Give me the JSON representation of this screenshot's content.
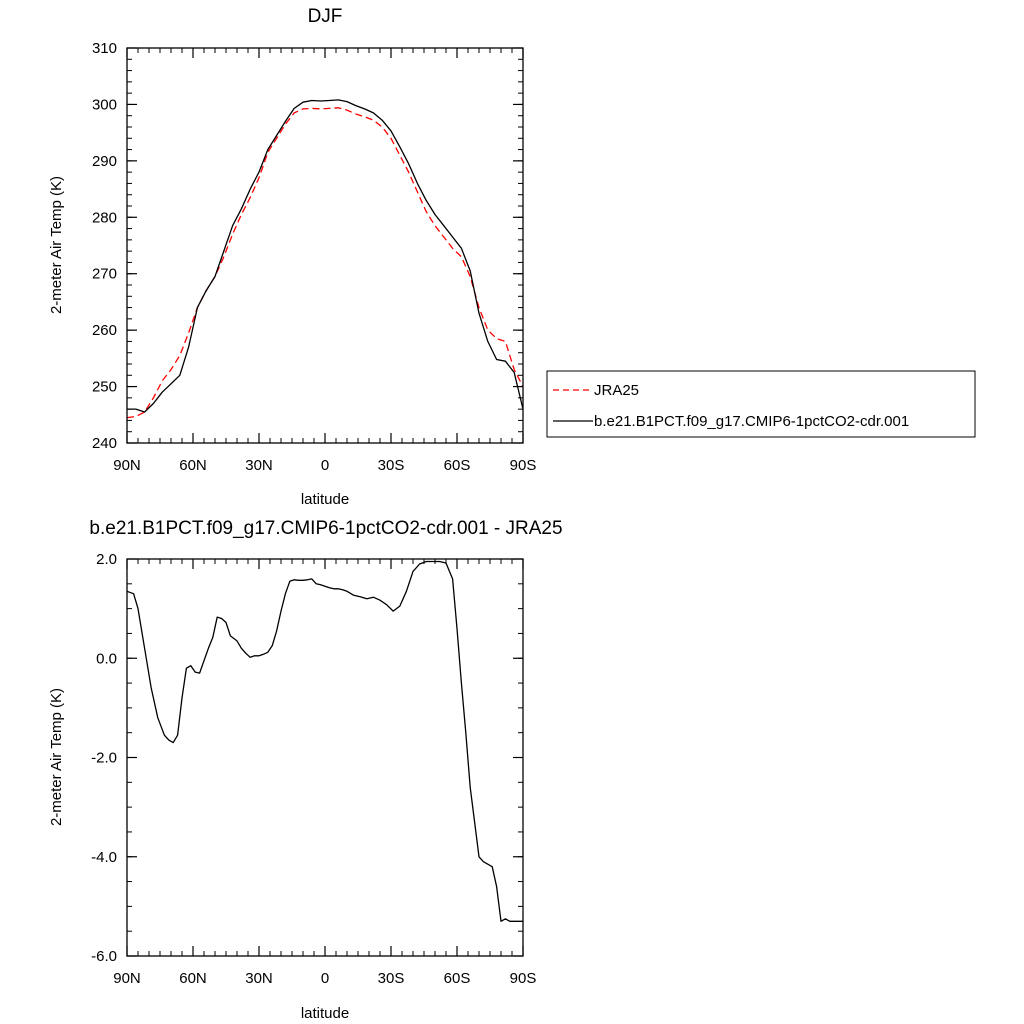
{
  "chart_data": [
    {
      "type": "line",
      "title": "DJF",
      "xlabel": "latitude",
      "ylabel": "2-meter Air Temp (K)",
      "xlim": [
        90,
        -90
      ],
      "ylim": [
        240,
        310
      ],
      "x_ticks": [
        {
          "value": 90,
          "label": "90N"
        },
        {
          "value": 60,
          "label": "60N"
        },
        {
          "value": 30,
          "label": "30N"
        },
        {
          "value": 0,
          "label": "0"
        },
        {
          "value": -30,
          "label": "30S"
        },
        {
          "value": -60,
          "label": "60S"
        },
        {
          "value": -90,
          "label": "90S"
        }
      ],
      "y_ticks": [
        {
          "value": 240,
          "label": "240"
        },
        {
          "value": 250,
          "label": "250"
        },
        {
          "value": 260,
          "label": "260"
        },
        {
          "value": 270,
          "label": "270"
        },
        {
          "value": 280,
          "label": "280"
        },
        {
          "value": 290,
          "label": "290"
        },
        {
          "value": 300,
          "label": "300"
        },
        {
          "value": 310,
          "label": "310"
        }
      ],
      "legend": "right",
      "series": [
        {
          "name": "JRA25",
          "color": "#ff0000",
          "dash": "dashed",
          "x": [
            90,
            86,
            82,
            78,
            74,
            70,
            66,
            62,
            58,
            54,
            50,
            46,
            42,
            38,
            34,
            30,
            26,
            22,
            18,
            14,
            10,
            6,
            2,
            -2,
            -6,
            -10,
            -14,
            -18,
            -22,
            -26,
            -30,
            -34,
            -38,
            -42,
            -46,
            -50,
            -54,
            -58,
            -62,
            -66,
            -70,
            -74,
            -78,
            -82,
            -86,
            -90
          ],
          "y": [
            244.5,
            244.7,
            245.5,
            248.0,
            251.0,
            253.0,
            255.5,
            259.5,
            264.0,
            267.0,
            269.5,
            273.0,
            277.0,
            280.5,
            283.5,
            287.0,
            291.5,
            294.0,
            296.5,
            298.5,
            299.2,
            299.3,
            299.2,
            299.3,
            299.4,
            299.0,
            298.3,
            297.8,
            297.2,
            296.0,
            294.0,
            291.0,
            288.0,
            284.5,
            281.0,
            278.5,
            276.5,
            274.5,
            273.0,
            269.5,
            264.0,
            260.0,
            258.5,
            258.0,
            253.0,
            250.0
          ]
        },
        {
          "name": "b.e21.B1PCT.f09_g17.CMIP6-1pctCO2-cdr.001",
          "color": "#000000",
          "dash": "solid",
          "x": [
            90,
            86,
            82,
            78,
            74,
            70,
            66,
            62,
            58,
            54,
            50,
            46,
            42,
            38,
            34,
            30,
            26,
            22,
            18,
            14,
            10,
            6,
            2,
            -2,
            -6,
            -10,
            -14,
            -18,
            -22,
            -26,
            -30,
            -34,
            -38,
            -42,
            -46,
            -50,
            -54,
            -58,
            -62,
            -66,
            -70,
            -74,
            -78,
            -82,
            -86,
            -90
          ],
          "y": [
            246.0,
            246.0,
            245.5,
            247.0,
            249.0,
            250.5,
            252.0,
            257.0,
            264.0,
            267.0,
            269.5,
            274.0,
            278.5,
            281.5,
            285.0,
            288.0,
            292.0,
            294.5,
            297.0,
            299.3,
            300.4,
            300.7,
            300.6,
            300.7,
            300.8,
            300.5,
            299.8,
            299.2,
            298.5,
            297.2,
            295.3,
            292.5,
            289.5,
            286.0,
            283.0,
            280.5,
            278.5,
            276.5,
            274.5,
            270.5,
            263.0,
            258.0,
            254.8,
            254.5,
            252.5,
            246.0
          ]
        }
      ]
    },
    {
      "type": "line",
      "title": "b.e21.B1PCT.f09_g17.CMIP6-1pctCO2-cdr.001 - JRA25",
      "xlabel": "latitude",
      "ylabel": "2-meter Air Temp (K)",
      "xlim": [
        90,
        -90
      ],
      "ylim": [
        -6,
        2
      ],
      "x_ticks": [
        {
          "value": 90,
          "label": "90N"
        },
        {
          "value": 60,
          "label": "60N"
        },
        {
          "value": 30,
          "label": "30N"
        },
        {
          "value": 0,
          "label": "0"
        },
        {
          "value": -30,
          "label": "30S"
        },
        {
          "value": -60,
          "label": "60S"
        },
        {
          "value": -90,
          "label": "90S"
        }
      ],
      "y_ticks": [
        {
          "value": -6,
          "label": "-6.0"
        },
        {
          "value": -4,
          "label": "-4.0"
        },
        {
          "value": -2,
          "label": "-2.0"
        },
        {
          "value": 0,
          "label": "0.0"
        },
        {
          "value": 2,
          "label": "2.0"
        }
      ],
      "series": [
        {
          "color": "#000000",
          "dash": "solid",
          "x": [
            90,
            87,
            85,
            82,
            79,
            76,
            73,
            71,
            69,
            67,
            65,
            63,
            61,
            59,
            57,
            55,
            53,
            51,
            49,
            47,
            45,
            43,
            40,
            38,
            36,
            34,
            32,
            30,
            28,
            26,
            24,
            22,
            20,
            18,
            16,
            14,
            12,
            10,
            8,
            6,
            4,
            2,
            0,
            -2,
            -4,
            -6,
            -8,
            -10,
            -13,
            -16,
            -19,
            -22,
            -25,
            -28,
            -31,
            -34,
            -37,
            -40,
            -43,
            -46,
            -49,
            -52,
            -55,
            -58,
            -60,
            -62,
            -64,
            -66,
            -68,
            -70,
            -72,
            -74,
            -76,
            -78,
            -80,
            -82,
            -84,
            -86,
            -88,
            -90
          ],
          "y": [
            1.35,
            1.3,
            1.0,
            0.2,
            -0.6,
            -1.2,
            -1.55,
            -1.65,
            -1.7,
            -1.55,
            -0.8,
            -0.2,
            -0.15,
            -0.28,
            -0.3,
            -0.05,
            0.2,
            0.42,
            0.83,
            0.8,
            0.72,
            0.45,
            0.35,
            0.2,
            0.1,
            0.02,
            0.05,
            0.05,
            0.08,
            0.12,
            0.25,
            0.55,
            0.95,
            1.3,
            1.55,
            1.58,
            1.57,
            1.57,
            1.58,
            1.6,
            1.5,
            1.48,
            1.45,
            1.42,
            1.4,
            1.4,
            1.38,
            1.35,
            1.27,
            1.24,
            1.2,
            1.23,
            1.17,
            1.08,
            0.95,
            1.05,
            1.35,
            1.75,
            1.9,
            1.95,
            1.95,
            1.95,
            1.92,
            1.6,
            0.6,
            -0.5,
            -1.5,
            -2.6,
            -3.3,
            -4.0,
            -4.1,
            -4.15,
            -4.2,
            -4.6,
            -5.3,
            -5.25,
            -5.3,
            -5.3,
            -5.3,
            -5.3
          ]
        }
      ]
    }
  ]
}
